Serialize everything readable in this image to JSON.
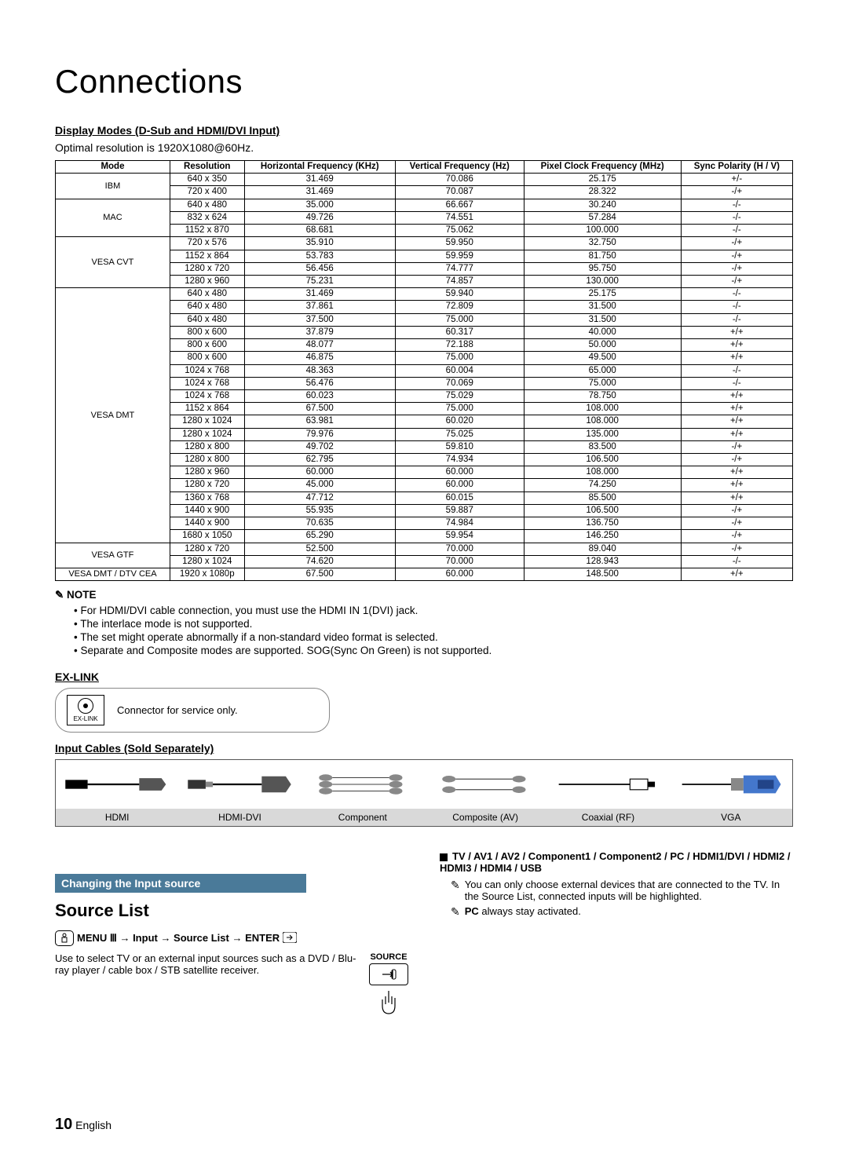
{
  "page_title": "Connections",
  "display_modes_heading": "Display Modes (D-Sub and HDMI/DVI Input)",
  "optimal_text": "Optimal resolution is 1920X1080@60Hz.",
  "table": {
    "headers": [
      "Mode",
      "Resolution",
      "Horizontal Frequency (KHz)",
      "Vertical Frequency (Hz)",
      "Pixel Clock Frequency (MHz)",
      "Sync Polarity (H / V)"
    ],
    "groups": [
      {
        "mode": "IBM",
        "rows": [
          [
            "640 x 350",
            "31.469",
            "70.086",
            "25.175",
            "+/-"
          ],
          [
            "720 x 400",
            "31.469",
            "70.087",
            "28.322",
            "-/+"
          ]
        ]
      },
      {
        "mode": "MAC",
        "rows": [
          [
            "640 x 480",
            "35.000",
            "66.667",
            "30.240",
            "-/-"
          ],
          [
            "832 x 624",
            "49.726",
            "74.551",
            "57.284",
            "-/-"
          ],
          [
            "1152 x 870",
            "68.681",
            "75.062",
            "100.000",
            "-/-"
          ]
        ]
      },
      {
        "mode": "VESA CVT",
        "rows": [
          [
            "720 x 576",
            "35.910",
            "59.950",
            "32.750",
            "-/+"
          ],
          [
            "1152 x 864",
            "53.783",
            "59.959",
            "81.750",
            "-/+"
          ],
          [
            "1280 x 720",
            "56.456",
            "74.777",
            "95.750",
            "-/+"
          ],
          [
            "1280 x 960",
            "75.231",
            "74.857",
            "130.000",
            "-/+"
          ]
        ]
      },
      {
        "mode": "VESA DMT",
        "rows": [
          [
            "640 x 480",
            "31.469",
            "59.940",
            "25.175",
            "-/-"
          ],
          [
            "640 x 480",
            "37.861",
            "72.809",
            "31.500",
            "-/-"
          ],
          [
            "640 x 480",
            "37.500",
            "75.000",
            "31.500",
            "-/-"
          ],
          [
            "800 x 600",
            "37.879",
            "60.317",
            "40.000",
            "+/+"
          ],
          [
            "800 x 600",
            "48.077",
            "72.188",
            "50.000",
            "+/+"
          ],
          [
            "800 x 600",
            "46.875",
            "75.000",
            "49.500",
            "+/+"
          ],
          [
            "1024 x 768",
            "48.363",
            "60.004",
            "65.000",
            "-/-"
          ],
          [
            "1024 x 768",
            "56.476",
            "70.069",
            "75.000",
            "-/-"
          ],
          [
            "1024 x 768",
            "60.023",
            "75.029",
            "78.750",
            "+/+"
          ],
          [
            "1152 x 864",
            "67.500",
            "75.000",
            "108.000",
            "+/+"
          ],
          [
            "1280 x 1024",
            "63.981",
            "60.020",
            "108.000",
            "+/+"
          ],
          [
            "1280 x 1024",
            "79.976",
            "75.025",
            "135.000",
            "+/+"
          ],
          [
            "1280 x 800",
            "49.702",
            "59.810",
            "83.500",
            "-/+"
          ],
          [
            "1280 x 800",
            "62.795",
            "74.934",
            "106.500",
            "-/+"
          ],
          [
            "1280 x 960",
            "60.000",
            "60.000",
            "108.000",
            "+/+"
          ],
          [
            "1280 x 720",
            "45.000",
            "60.000",
            "74.250",
            "+/+"
          ],
          [
            "1360 x 768",
            "47.712",
            "60.015",
            "85.500",
            "+/+"
          ],
          [
            "1440 x 900",
            "55.935",
            "59.887",
            "106.500",
            "-/+"
          ],
          [
            "1440 x 900",
            "70.635",
            "74.984",
            "136.750",
            "-/+"
          ],
          [
            "1680 x 1050",
            "65.290",
            "59.954",
            "146.250",
            "-/+"
          ]
        ]
      },
      {
        "mode": "VESA GTF",
        "rows": [
          [
            "1280 x 720",
            "52.500",
            "70.000",
            "89.040",
            "-/+"
          ],
          [
            "1280 x 1024",
            "74.620",
            "70.000",
            "128.943",
            "-/-"
          ]
        ]
      },
      {
        "mode": "VESA DMT / DTV CEA",
        "rows": [
          [
            "1920 x 1080p",
            "67.500",
            "60.000",
            "148.500",
            "+/+"
          ]
        ]
      }
    ]
  },
  "note_label": "✎ NOTE",
  "notes": [
    "For HDMI/DVI cable connection, you must use the HDMI IN 1(DVI) jack.",
    "The interlace mode is not supported.",
    "The set might operate abnormally if a non-standard video format is selected.",
    "Separate and Composite modes are supported. SOG(Sync On Green) is not supported."
  ],
  "exlink_title": "EX-LINK",
  "exlink_label": "EX-LINK",
  "exlink_text": "Connector for service only.",
  "cables_title": "Input Cables (Sold Separately)",
  "cables": [
    "HDMI",
    "HDMI-DVI",
    "Component",
    "Composite (AV)",
    "Coaxial (RF)",
    "VGA"
  ],
  "changing_title": "Changing the Input source",
  "source_list_title": "Source List",
  "menu_path": "MENU Ⅲ → Input → Source List → ENTER",
  "source_desc": "Use to select TV or an external input sources such as a DVD / Blu-ray player / cable box / STB satellite receiver.",
  "source_btn_label": "SOURCE",
  "tv_inputs": "TV / AV1 / AV2 / Component1 / Component2 / PC / HDMI1/DVI / HDMI2 / HDMI3 / HDMI4 / USB",
  "subnote1": "You can only choose external devices that are connected to the TV. In the Source List, connected inputs will be highlighted.",
  "subnote2_pc": "PC",
  "subnote2_rest": " always stay activated.",
  "page_num": "10",
  "page_lang": "English"
}
